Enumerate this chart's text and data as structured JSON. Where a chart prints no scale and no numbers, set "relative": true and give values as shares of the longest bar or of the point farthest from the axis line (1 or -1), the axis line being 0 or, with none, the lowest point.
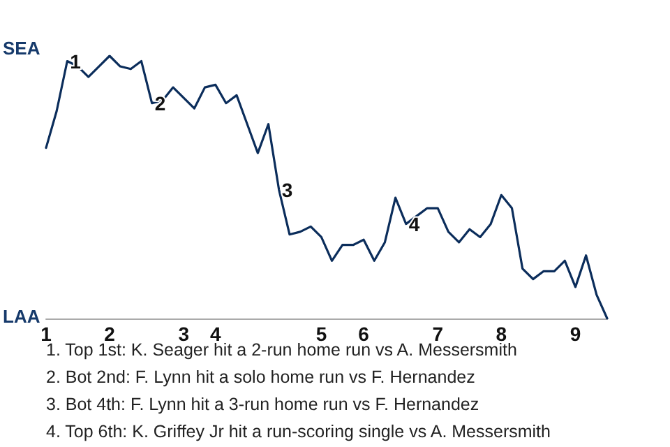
{
  "chart_data": {
    "type": "line",
    "relative": true,
    "categories": [
      "1",
      null,
      null,
      null,
      null,
      null,
      "2",
      null,
      null,
      null,
      null,
      null,
      null,
      "3",
      null,
      null,
      "4",
      null,
      null,
      null,
      null,
      null,
      null,
      null,
      null,
      null,
      "5",
      null,
      null,
      null,
      "6",
      null,
      null,
      null,
      null,
      null,
      null,
      "7",
      null,
      null,
      null,
      null,
      null,
      "8",
      null,
      null,
      null,
      null,
      null,
      null,
      "9",
      null,
      null,
      null
    ],
    "series": [
      {
        "color": "#0b2d5b",
        "values": [
          0.65,
          0.79,
          0.98,
          0.96,
          0.92,
          0.96,
          1,
          0.96,
          0.95,
          0.98,
          0.82,
          0.83,
          0.88,
          0.84,
          0.8,
          0.88,
          0.89,
          0.82,
          0.85,
          0.74,
          0.63,
          0.74,
          0.49,
          0.32,
          0.33,
          0.35,
          0.31,
          0.22,
          0.28,
          0.28,
          0.3,
          0.22,
          0.29,
          0.46,
          0.36,
          0.39,
          0.42,
          0.42,
          0.33,
          0.29,
          0.34,
          0.31,
          0.36,
          0.47,
          0.42,
          0.19,
          0.15,
          0.18,
          0.18,
          0.22,
          0.12,
          0.24,
          0.09,
          0
        ]
      }
    ],
    "line_style": "solid",
    "annotations": [
      "SEA",
      "LAA",
      {
        "text": "1",
        "y": 0.98
      },
      {
        "text": "2",
        "y": 0.82
      },
      {
        "text": "3",
        "y": 0.49
      },
      {
        "text": "4",
        "y": 0.36
      },
      "1. Top 1st: K. Seager hit a 2-run home run vs A. Messersmith",
      "2. Bot 2nd: F. Lynn hit a solo home run vs F. Hernandez",
      "3. Bot 4th: F. Lynn hit a 3-run home run vs F. Hernandez",
      "4. Top 6th: K. Griffey Jr hit a run-scoring single vs A. Messersmith"
    ]
  }
}
